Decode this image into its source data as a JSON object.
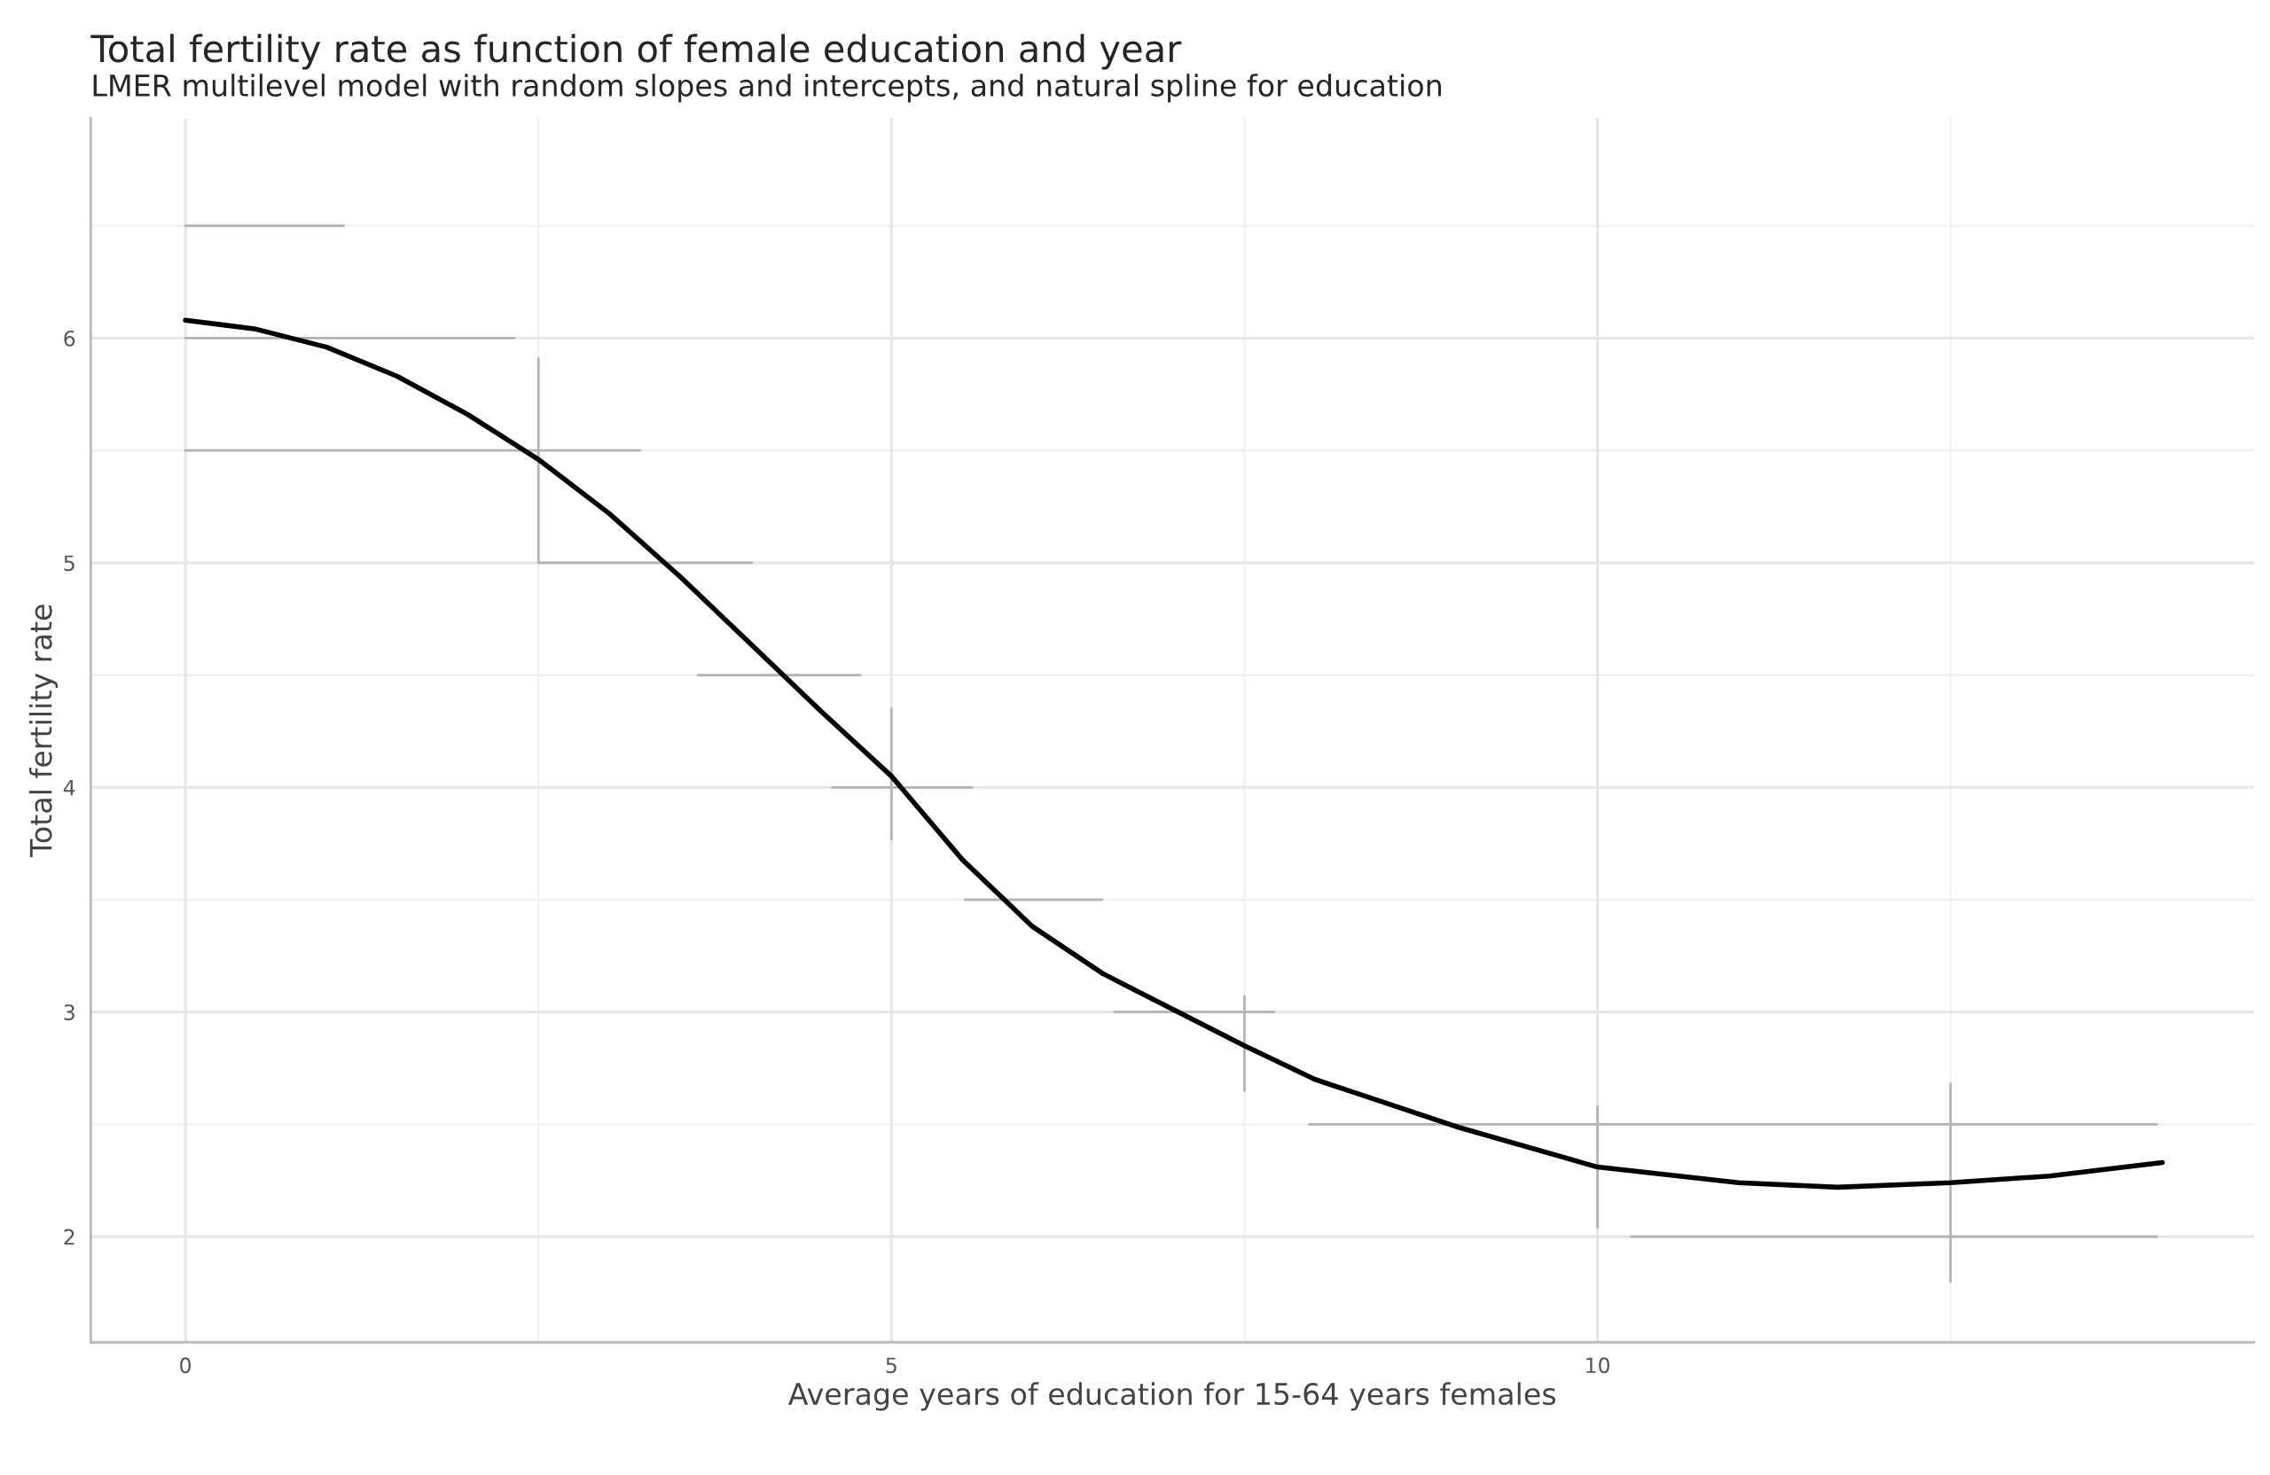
{
  "chart_data": {
    "type": "line",
    "title": "Total fertility rate as function of female education and year",
    "subtitle": "LMER multilevel model with random slopes and intercepts, and natural spline for education",
    "xlabel": "Average years of education for 15-64 years females",
    "ylabel": "Total fertility rate",
    "xlim": [
      -0.67,
      14.65
    ],
    "ylim": [
      1.53,
      6.98
    ],
    "xticks": [
      0,
      5,
      10
    ],
    "yticks": [
      2,
      3,
      4,
      5,
      6
    ],
    "grid": true,
    "marker": "none",
    "line_style": "solid",
    "series": [
      {
        "color": "#b3b3b3",
        "x": [
          0,
          1.12
        ],
        "values": [
          6.5,
          6.5
        ]
      },
      {
        "color": "#b3b3b3",
        "x": [
          0,
          2.33
        ],
        "values": [
          6,
          6
        ]
      },
      {
        "color": "#b3b3b3",
        "x": [
          0,
          3.22
        ],
        "values": [
          5.5,
          5.5
        ]
      },
      {
        "color": "#b3b3b3",
        "x": [
          2.5,
          4.01
        ],
        "values": [
          5,
          5
        ]
      },
      {
        "color": "#b3b3b3",
        "x": [
          3.63,
          4.78
        ],
        "values": [
          4.5,
          4.5
        ]
      },
      {
        "color": "#b3b3b3",
        "x": [
          4.58,
          5.57
        ],
        "values": [
          4,
          4
        ]
      },
      {
        "color": "#b3b3b3",
        "x": [
          5.52,
          6.49
        ],
        "values": [
          3.5,
          3.5
        ]
      },
      {
        "color": "#b3b3b3",
        "x": [
          6.58,
          7.71
        ],
        "values": [
          3,
          3
        ]
      },
      {
        "color": "#b3b3b3",
        "x": [
          7.96,
          13.96
        ],
        "values": [
          2.5,
          2.5
        ]
      },
      {
        "color": "#b3b3b3",
        "x": [
          10.24,
          13.96
        ],
        "values": [
          2,
          2
        ]
      },
      {
        "color": "#b3b3b3",
        "x": [
          2.5,
          2.5
        ],
        "values": [
          5.0,
          5.91
        ]
      },
      {
        "color": "#b3b3b3",
        "x": [
          5,
          5
        ],
        "values": [
          3.77,
          4.35
        ]
      },
      {
        "color": "#b3b3b3",
        "x": [
          7.5,
          7.5
        ],
        "values": [
          2.65,
          3.07
        ]
      },
      {
        "color": "#b3b3b3",
        "x": [
          10,
          10
        ],
        "values": [
          2.04,
          2.58
        ]
      },
      {
        "color": "#b3b3b3",
        "x": [
          12.5,
          12.5
        ],
        "values": [
          1.8,
          2.68
        ]
      },
      {
        "color": "#000000",
        "x": [
          0,
          0.5,
          1,
          1.5,
          2,
          2.5,
          3,
          3.5,
          4,
          4.5,
          5,
          5.5,
          6,
          6.5,
          7,
          7.5,
          8,
          9,
          10,
          11,
          11.7,
          12.5,
          13.2,
          14
        ],
        "values": [
          6.08,
          6.04,
          5.96,
          5.83,
          5.66,
          5.46,
          5.22,
          4.94,
          4.64,
          4.34,
          4.05,
          3.68,
          3.38,
          3.17,
          3.01,
          2.85,
          2.7,
          2.49,
          2.31,
          2.24,
          2.22,
          2.24,
          2.27,
          2.33
        ]
      }
    ]
  }
}
